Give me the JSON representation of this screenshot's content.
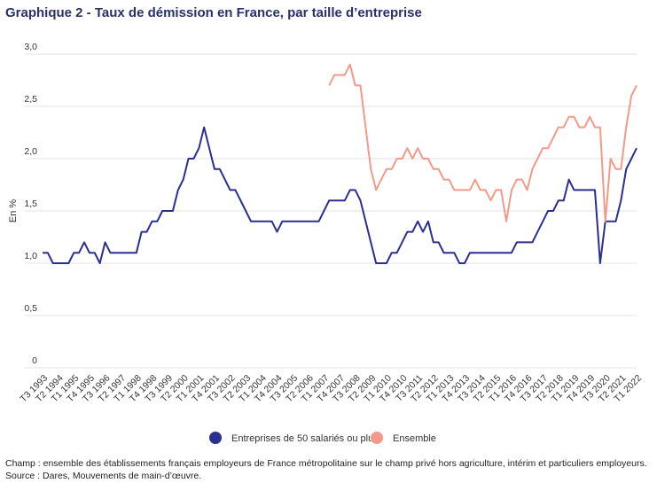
{
  "chart_data": {
    "type": "line",
    "title": "Graphique 2 - Taux de démission en France, par taille d’entreprise",
    "y_label": "En %",
    "categories": [
      "T3 1993",
      null,
      null,
      "T2 1994",
      null,
      null,
      "T1 1995",
      null,
      null,
      "T4 1995",
      null,
      null,
      "T3 1996",
      null,
      null,
      "T2 1997",
      null,
      null,
      "T1 1998",
      null,
      null,
      "T4 1998",
      null,
      null,
      "T3 1999",
      null,
      null,
      "T2 2000",
      null,
      null,
      "T1 2001",
      null,
      null,
      "T4 2001",
      null,
      null,
      "T3 2002",
      null,
      null,
      "T2 2003",
      null,
      null,
      "T1 2004",
      null,
      null,
      "T4 2004",
      null,
      null,
      "T3 2005",
      null,
      null,
      "T2 2006",
      null,
      null,
      "T1 2007",
      null,
      null,
      "T4 2007",
      null,
      null,
      "T3 2008",
      null,
      null,
      "T2 2009",
      null,
      null,
      "T1 2010",
      null,
      null,
      "T4 2010",
      null,
      null,
      "T3 2011",
      null,
      null,
      "T2 2012",
      null,
      null,
      "T1 2013",
      null,
      null,
      "T4 2013",
      null,
      null,
      "T3 2014",
      null,
      null,
      "T2 2015",
      null,
      null,
      "T1 2016",
      null,
      null,
      "T4 2016",
      null,
      null,
      "T3 2017",
      null,
      null,
      "T2 2018",
      null,
      null,
      "T1 2019",
      null,
      null,
      "T4 2019",
      null,
      null,
      "T3 2020",
      null,
      null,
      "T2 2021",
      null,
      null,
      "T1 2022"
    ],
    "series": [
      {
        "name": "Entreprises de 50 salariés ou plus",
        "color": "#2b2f8f",
        "values": [
          1.1,
          1.1,
          1.0,
          1.0,
          1.0,
          1.0,
          1.1,
          1.1,
          1.2,
          1.1,
          1.1,
          1.0,
          1.2,
          1.1,
          1.1,
          1.1,
          1.1,
          1.1,
          1.1,
          1.3,
          1.3,
          1.4,
          1.4,
          1.5,
          1.5,
          1.5,
          1.7,
          1.8,
          2.0,
          2.0,
          2.1,
          2.3,
          2.1,
          1.9,
          1.9,
          1.8,
          1.7,
          1.7,
          1.6,
          1.5,
          1.4,
          1.4,
          1.4,
          1.4,
          1.4,
          1.3,
          1.4,
          1.4,
          1.4,
          1.4,
          1.4,
          1.4,
          1.4,
          1.4,
          1.5,
          1.6,
          1.6,
          1.6,
          1.6,
          1.7,
          1.7,
          1.6,
          1.4,
          1.2,
          1.0,
          1.0,
          1.0,
          1.1,
          1.1,
          1.2,
          1.3,
          1.3,
          1.4,
          1.3,
          1.4,
          1.2,
          1.2,
          1.1,
          1.1,
          1.1,
          1.0,
          1.0,
          1.1,
          1.1,
          1.1,
          1.1,
          1.1,
          1.1,
          1.1,
          1.1,
          1.1,
          1.2,
          1.2,
          1.2,
          1.2,
          1.3,
          1.4,
          1.5,
          1.5,
          1.6,
          1.6,
          1.8,
          1.7,
          1.7,
          1.7,
          1.7,
          1.7,
          1.0,
          1.4,
          1.4,
          1.4,
          1.6,
          1.9,
          2.0,
          2.1
        ]
      },
      {
        "name": "Ensemble",
        "color": "#f4998a",
        "values": [
          null,
          null,
          null,
          null,
          null,
          null,
          null,
          null,
          null,
          null,
          null,
          null,
          null,
          null,
          null,
          null,
          null,
          null,
          null,
          null,
          null,
          null,
          null,
          null,
          null,
          null,
          null,
          null,
          null,
          null,
          null,
          null,
          null,
          null,
          null,
          null,
          null,
          null,
          null,
          null,
          null,
          null,
          null,
          null,
          null,
          null,
          null,
          null,
          null,
          null,
          null,
          null,
          null,
          null,
          null,
          2.7,
          2.8,
          2.8,
          2.8,
          2.9,
          2.7,
          2.7,
          2.3,
          1.9,
          1.7,
          1.8,
          1.9,
          1.9,
          2.0,
          2.0,
          2.1,
          2.0,
          2.1,
          2.0,
          2.0,
          1.9,
          1.9,
          1.8,
          1.8,
          1.7,
          1.7,
          1.7,
          1.7,
          1.8,
          1.7,
          1.7,
          1.6,
          1.7,
          1.7,
          1.4,
          1.7,
          1.8,
          1.8,
          1.7,
          1.9,
          2.0,
          2.1,
          2.1,
          2.2,
          2.3,
          2.3,
          2.4,
          2.4,
          2.3,
          2.3,
          2.4,
          2.3,
          2.3,
          1.4,
          2.0,
          1.9,
          1.9,
          2.3,
          2.6,
          2.7
        ]
      }
    ],
    "ylim": [
      0,
      3
    ],
    "yticks": [
      0,
      {
        "value": 0.5,
        "label": "0,5"
      },
      {
        "value": 1,
        "label": "1,0"
      },
      {
        "value": 1.5,
        "label": "1,5"
      },
      {
        "value": 2,
        "label": "2,0"
      },
      {
        "value": 2.5,
        "label": "2,5"
      },
      {
        "value": 3,
        "label": "3,0"
      }
    ],
    "grid": true,
    "legend": "bottom",
    "notes": [
      "Champ : ensemble des établissements français employeurs de France métropolitaine sur le champ privé hors agriculture, intérim et particuliers employeurs.",
      "Source : Dares, Mouvements de main-d’œuvre."
    ]
  }
}
